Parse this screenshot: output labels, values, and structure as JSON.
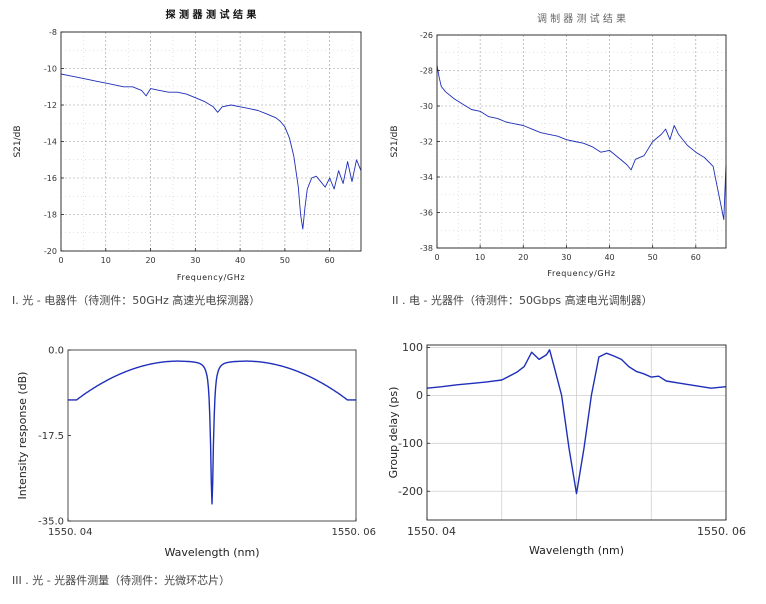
{
  "captions": {
    "c1": "I. 光 - 电器件（待测件：50GHz 高速光电探测器）",
    "c2": "II . 电 - 光器件（待测件：50Gbps 高速电光调制器）",
    "c3": "III . 光 - 光器件测量（待测件：光微环芯片）"
  },
  "colors": {
    "trace": "#1f2fb8",
    "grid": "#bfbfbf",
    "axis": "#222222"
  },
  "chart_data": [
    {
      "id": "photodetector",
      "type": "line",
      "title": "探 测 器 测 试 结 果",
      "xlabel": "Frequency/GHz",
      "ylabel": "S21/dB",
      "xlim": [
        0,
        67
      ],
      "ylim": [
        -20,
        -8
      ],
      "xticks": [
        0,
        10,
        20,
        30,
        40,
        50,
        60
      ],
      "yticks": [
        -8,
        -10,
        -12,
        -14,
        -16,
        -18,
        -20
      ],
      "grid": "dotted",
      "series": [
        {
          "name": "S21",
          "x": [
            0,
            2,
            4,
            6,
            8,
            10,
            12,
            14,
            16,
            18,
            19,
            20,
            22,
            24,
            26,
            28,
            30,
            32,
            34,
            35,
            36,
            38,
            40,
            42,
            44,
            46,
            48,
            49,
            50,
            51,
            52,
            53,
            53.5,
            54,
            54.5,
            55,
            56,
            57,
            58,
            59,
            60,
            61,
            62,
            63,
            64,
            65,
            66,
            67
          ],
          "y": [
            -10.3,
            -10.4,
            -10.5,
            -10.6,
            -10.7,
            -10.8,
            -10.9,
            -11.0,
            -11.0,
            -11.2,
            -11.5,
            -11.1,
            -11.2,
            -11.3,
            -11.3,
            -11.4,
            -11.6,
            -11.8,
            -12.1,
            -12.4,
            -12.1,
            -12.0,
            -12.1,
            -12.2,
            -12.3,
            -12.5,
            -12.7,
            -12.9,
            -13.2,
            -13.8,
            -14.8,
            -16.5,
            -18.0,
            -18.8,
            -17.6,
            -16.6,
            -16.0,
            -15.9,
            -16.2,
            -16.5,
            -16.0,
            -16.6,
            -15.6,
            -16.3,
            -15.1,
            -16.2,
            -15.0,
            -15.6
          ]
        }
      ]
    },
    {
      "id": "modulator",
      "type": "line",
      "title": "调 制 器 测 试 结 果",
      "xlabel": "Frequency/GHz",
      "ylabel": "S21/dB",
      "xlim": [
        0,
        67
      ],
      "ylim": [
        -38,
        -26
      ],
      "xticks": [
        0,
        10,
        20,
        30,
        40,
        50,
        60
      ],
      "yticks": [
        -26,
        -28,
        -30,
        -32,
        -34,
        -36,
        -38
      ],
      "grid": "dotted",
      "series": [
        {
          "name": "S21",
          "x": [
            0,
            0.5,
            1,
            2,
            4,
            6,
            8,
            10,
            12,
            14,
            16,
            18,
            20,
            22,
            24,
            26,
            28,
            30,
            32,
            34,
            36,
            38,
            40,
            42,
            44,
            45,
            46,
            48,
            50,
            52,
            53,
            54,
            55,
            56,
            58,
            60,
            62,
            64,
            65,
            66,
            66.5,
            67
          ],
          "y": [
            -27.7,
            -28.4,
            -28.9,
            -29.2,
            -29.6,
            -29.9,
            -30.2,
            -30.3,
            -30.6,
            -30.7,
            -30.9,
            -31.0,
            -31.1,
            -31.3,
            -31.5,
            -31.6,
            -31.7,
            -31.9,
            -32.0,
            -32.1,
            -32.3,
            -32.6,
            -32.5,
            -32.9,
            -33.3,
            -33.6,
            -33.0,
            -32.8,
            -32.0,
            -31.6,
            -31.3,
            -31.9,
            -31.1,
            -31.6,
            -32.2,
            -32.6,
            -32.9,
            -33.4,
            -34.6,
            -35.8,
            -36.4,
            -33.3
          ]
        }
      ]
    },
    {
      "id": "ring-intensity",
      "type": "line",
      "xlabel": "Wavelength (nm)",
      "ylabel": "Intensity response (dB)",
      "xlim": [
        1550.04,
        1550.06
      ],
      "ylim": [
        -35,
        0
      ],
      "xticks": [
        1550.04,
        1550.06
      ],
      "xticklabels": [
        "1550. 04",
        "1550. 06"
      ],
      "yticks": [
        0,
        -17.5,
        -35
      ],
      "yticklabels": [
        "0.0",
        "-17.5",
        "-35.0"
      ],
      "resonance": {
        "center_nm": 1550.05,
        "min_db": -31.5,
        "peak_db": -2.2,
        "edge_db": -10.2
      },
      "grid": "none"
    },
    {
      "id": "ring-delay",
      "type": "line",
      "xlabel": "Wavelength (nm)",
      "ylabel": "Group delay (ps)",
      "xlim": [
        1550.04,
        1550.06
      ],
      "ylim": [
        -260,
        105
      ],
      "xticks": [
        1550.04,
        1550.06
      ],
      "xticklabels": [
        "1550. 04",
        "1550. 06"
      ],
      "yticks": [
        100,
        0,
        -100,
        -200
      ],
      "grid": "solid",
      "series": [
        {
          "name": "Group delay",
          "x": [
            1550.04,
            1550.041,
            1550.042,
            1550.043,
            1550.044,
            1550.045,
            1550.046,
            1550.0465,
            1550.047,
            1550.0475,
            1550.048,
            1550.0482,
            1550.0485,
            1550.049,
            1550.0495,
            1550.05,
            1550.0505,
            1550.051,
            1550.0515,
            1550.052,
            1550.0525,
            1550.053,
            1550.0535,
            1550.054,
            1550.0545,
            1550.055,
            1550.0555,
            1550.056,
            1550.057,
            1550.058,
            1550.059,
            1550.06
          ],
          "y": [
            15,
            18,
            22,
            25,
            28,
            32,
            48,
            60,
            90,
            75,
            85,
            95,
            60,
            0,
            -110,
            -205,
            -110,
            0,
            80,
            88,
            82,
            75,
            60,
            50,
            45,
            38,
            40,
            30,
            25,
            20,
            15,
            18
          ]
        }
      ]
    }
  ]
}
